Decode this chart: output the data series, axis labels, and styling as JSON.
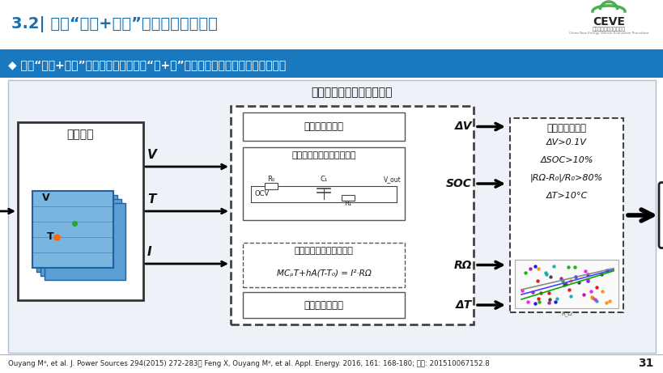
{
  "title": "3.2| 基于“平均+差异”原理的内短路辨识",
  "subtitle": "◆ 基于“平均+差异”假设，以及内短路的“电+热”耦合特征，判断电池组内短路风险",
  "bg_color": "#ffffff",
  "title_color": "#1a6faf",
  "subtitle_bar_color": "#1a78bf",
  "footer_text": "Ouyang Mᵃ, et al. J. Power Sources 294(2015) 272-283； Feng X, Ouyang Mᵃ, et al. Appl. Energy. 2016, 161: 168-180; 专利: 201510067152.8",
  "page_number": "31",
  "algorithm_title": "基于模型的内短路检测算法",
  "left_box_title": "实车数据",
  "boxes": [
    "电压一致性判断",
    "基于电化学模型的状态估计",
    "基于产热模型的参数辨识",
    "温度一致性判断"
  ],
  "outputs": [
    "ΔV",
    "SOC",
    "RΩ",
    "ΔT"
  ],
  "criteria_title": "显著性判定准则",
  "criteria": [
    "ΔV>0.1V",
    "ΔSOC>10%",
    "|RΩ-R₀|/R₀>80%",
    "ΔT>10°C"
  ],
  "formula": "MCₚṪ+hA(T-T₀) = I²·RΩ"
}
